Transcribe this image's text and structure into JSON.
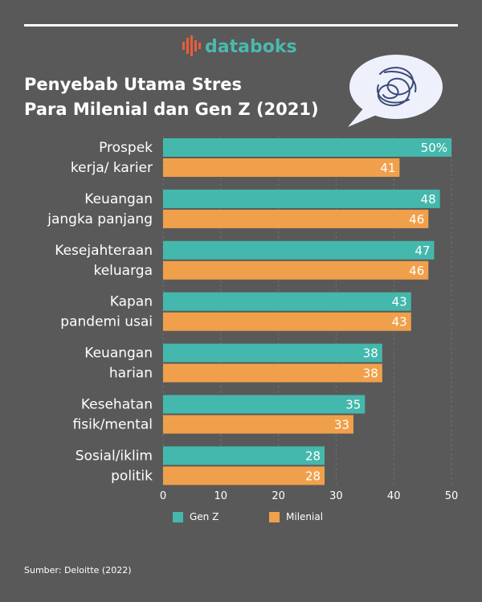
{
  "brand": {
    "name": "databoks"
  },
  "title": {
    "line1": "Penyebab Utama Stres",
    "line2": "Para Milenial dan Gen Z (2021)"
  },
  "source": "Sumber: Deloitte (2022)",
  "icons": {
    "logo": "databoks-logo-icon",
    "bubble": "thought-bubble-icon"
  },
  "colors": {
    "background": "#595959",
    "gen_z": "#44b8ac",
    "milenial": "#f0a04b",
    "brand_orange": "#e95d3c",
    "brand_teal": "#4bb9ad"
  },
  "chart_data": {
    "type": "bar",
    "orientation": "horizontal",
    "categories": [
      [
        "Prospek",
        "kerja/ karier"
      ],
      [
        "Keuangan",
        "jangka panjang"
      ],
      [
        "Kesejahteraan",
        "keluarga"
      ],
      [
        "Kapan",
        "pandemi usai"
      ],
      [
        "Keuangan",
        "harian"
      ],
      [
        "Kesehatan",
        "fisik/mental"
      ],
      [
        "Sosial/iklim",
        "politik"
      ]
    ],
    "series": [
      {
        "name": "Gen Z",
        "values": [
          50,
          48,
          47,
          43,
          38,
          35,
          28
        ],
        "labels": [
          "50%",
          "48",
          "47",
          "43",
          "38",
          "35",
          "28"
        ]
      },
      {
        "name": "Milenial",
        "values": [
          41,
          46,
          46,
          43,
          38,
          33,
          28
        ],
        "labels": [
          "41",
          "46",
          "46",
          "43",
          "38",
          "33",
          "28"
        ]
      }
    ],
    "xlim": [
      0,
      50
    ],
    "xticks": [
      "0",
      "10",
      "20",
      "30",
      "40",
      "50"
    ],
    "grid": true,
    "legend": "bottom"
  }
}
